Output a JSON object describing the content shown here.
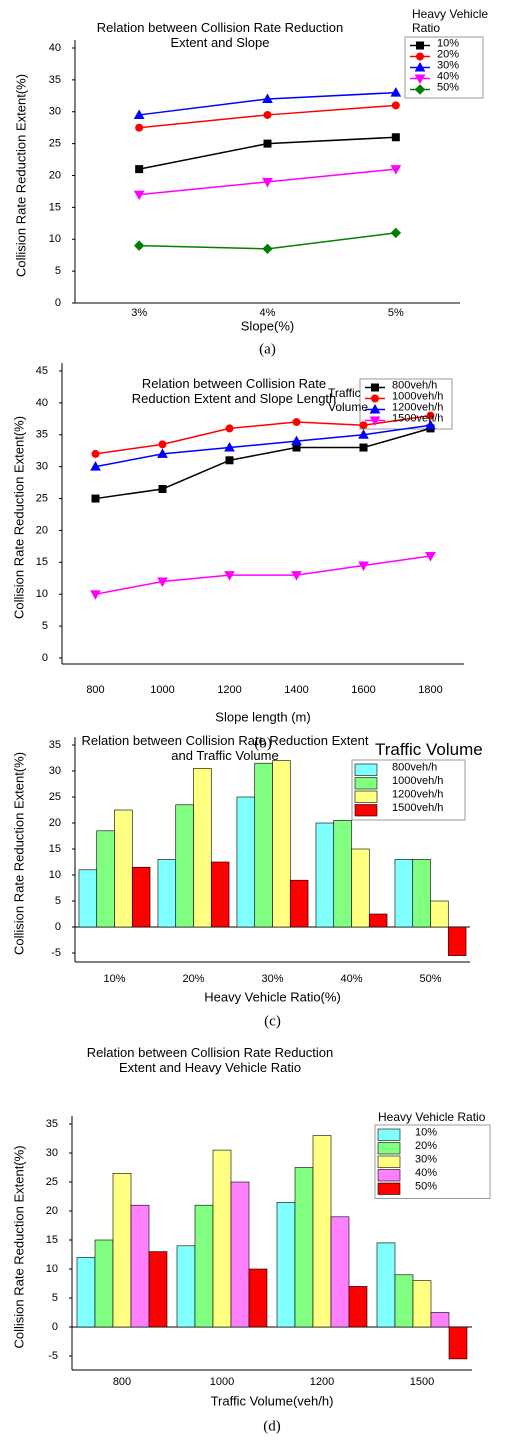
{
  "chart_data": [
    {
      "type": "line",
      "title": "Relation between Collision Rate Reduction Extent and Slope",
      "legend_title": "Heavy Vehicle Ratio",
      "x_label": "Slope(%)",
      "y_label": "Collision Rate Reduction Extent(%)",
      "caption": "(a)",
      "categories": [
        "3%",
        "4%",
        "5%"
      ],
      "ylim": [
        0,
        40
      ],
      "yticks": [
        0,
        5,
        10,
        15,
        20,
        25,
        30,
        35,
        40
      ],
      "series": [
        {
          "name": "10%",
          "color": "#000000",
          "marker": "square",
          "values": [
            21,
            25,
            26
          ]
        },
        {
          "name": "20%",
          "color": "#ff0000",
          "marker": "circle",
          "values": [
            27.5,
            29.5,
            31
          ]
        },
        {
          "name": "30%",
          "color": "#0000ff",
          "marker": "triangle",
          "values": [
            29.5,
            32,
            33
          ]
        },
        {
          "name": "40%",
          "color": "#ff00ff",
          "marker": "triangle-down",
          "values": [
            17,
            19,
            21
          ]
        },
        {
          "name": "50%",
          "color": "#008000",
          "marker": "diamond",
          "values": [
            9,
            8.5,
            11
          ]
        }
      ]
    },
    {
      "type": "line",
      "title": "Relation between Collision Rate Reduction Extent and Slope Length",
      "legend_title": "Traffic Volume",
      "x_label": "Slope length (m)",
      "y_label": "Collision Rate Reduction Extent(%)",
      "caption": "(b)",
      "categories": [
        "800",
        "1000",
        "1200",
        "1400",
        "1600",
        "1800"
      ],
      "ylim": [
        0,
        45
      ],
      "yticks": [
        0,
        5,
        10,
        15,
        20,
        25,
        30,
        35,
        40,
        45
      ],
      "series": [
        {
          "name": "800veh/h",
          "color": "#000000",
          "marker": "square",
          "values": [
            25,
            26.5,
            31,
            33,
            33,
            36
          ]
        },
        {
          "name": "1000veh/h",
          "color": "#ff0000",
          "marker": "circle",
          "values": [
            32,
            33.5,
            36,
            37,
            36.5,
            38
          ]
        },
        {
          "name": "1200veh/h",
          "color": "#0000ff",
          "marker": "triangle",
          "values": [
            30,
            32,
            33,
            34,
            35,
            36.5
          ]
        },
        {
          "name": "1500veh/h",
          "color": "#ff00ff",
          "marker": "triangle-down",
          "values": [
            10,
            12,
            13,
            13,
            14.5,
            16
          ]
        }
      ]
    },
    {
      "type": "bar",
      "title": "Relation between Collision Rate Reduction Extent and Traffic Volume",
      "legend_title": "Traffic Volume",
      "x_label": "Heavy Vehicle Ratio(%)",
      "y_label": "Collision Rate Reduction Extent(%)",
      "caption": "(c)",
      "categories": [
        "10%",
        "20%",
        "30%",
        "40%",
        "50%"
      ],
      "ylim": [
        -5,
        35
      ],
      "yticks": [
        -5,
        0,
        5,
        10,
        15,
        20,
        25,
        30,
        35
      ],
      "series": [
        {
          "name": "800veh/h",
          "color": "#80ffff",
          "values": [
            11,
            13,
            25,
            20,
            13
          ]
        },
        {
          "name": "1000veh/h",
          "color": "#80ff80",
          "values": [
            18.5,
            23.5,
            31.5,
            20.5,
            13
          ]
        },
        {
          "name": "1200veh/h",
          "color": "#ffff80",
          "values": [
            22.5,
            30.5,
            32,
            15,
            5
          ]
        },
        {
          "name": "1500veh/h",
          "color": "#ff0000",
          "values": [
            11.5,
            12.5,
            9,
            2.5,
            -5.5
          ]
        }
      ]
    },
    {
      "type": "bar",
      "title": "Relation between Collision Rate Reduction Extent and Heavy Vehicle Ratio",
      "legend_title": "Heavy Vehicle Ratio",
      "x_label": "Traffic Volume(veh/h)",
      "y_label": "Collision Rate Reduction Extent(%)",
      "caption": "(d)",
      "categories": [
        "800",
        "1000",
        "1200",
        "1500"
      ],
      "ylim": [
        -5,
        35
      ],
      "yticks": [
        -5,
        0,
        5,
        10,
        15,
        20,
        25,
        30,
        35
      ],
      "series": [
        {
          "name": "10%",
          "color": "#80ffff",
          "values": [
            12,
            14,
            21.5,
            14.5
          ]
        },
        {
          "name": "20%",
          "color": "#80ff80",
          "values": [
            15,
            21,
            27.5,
            9
          ]
        },
        {
          "name": "30%",
          "color": "#ffff80",
          "values": [
            26.5,
            30.5,
            33,
            8
          ]
        },
        {
          "name": "40%",
          "color": "#ff80ff",
          "values": [
            21,
            25,
            19,
            2.5
          ]
        },
        {
          "name": "50%",
          "color": "#ff0000",
          "values": [
            13,
            10,
            7,
            -5.5
          ]
        }
      ]
    }
  ]
}
